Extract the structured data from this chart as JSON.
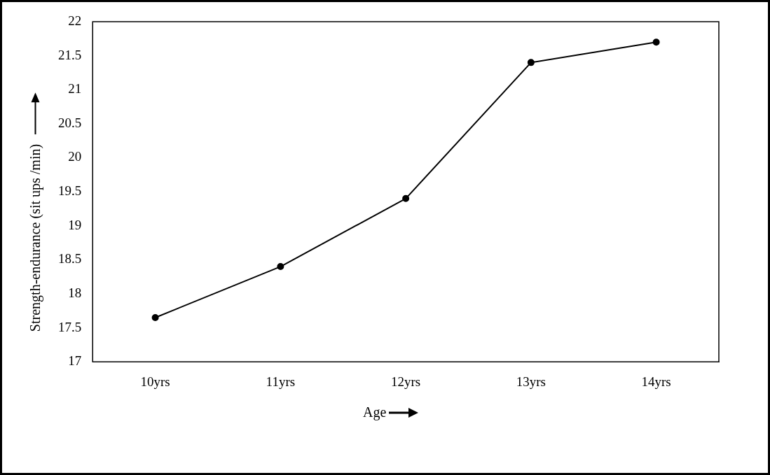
{
  "chart_data": {
    "type": "line",
    "xlabel": "Age",
    "ylabel": "Strength-endurance (sit ups /min)",
    "categories": [
      "10yrs",
      "11yrs",
      "12yrs",
      "13yrs",
      "14yrs"
    ],
    "series": [
      {
        "color": "#000000",
        "values": [
          17.65,
          18.4,
          19.4,
          21.4,
          21.7
        ]
      }
    ],
    "ylim": [
      17,
      22
    ],
    "yticks": [
      17,
      17.5,
      18,
      18.5,
      19,
      19.5,
      20,
      20.5,
      21,
      21.5,
      22
    ],
    "grid": false,
    "legend": false,
    "marker": "circle",
    "line_style": "solid"
  }
}
